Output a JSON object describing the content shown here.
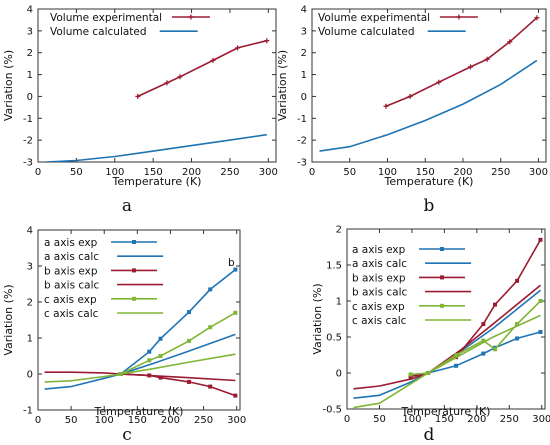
{
  "colors": {
    "exp_red": "#9b1b30",
    "calc_blue": "#1f74b4",
    "a_blue": "#1f74b4",
    "b_red": "#9b1b30",
    "c_green": "#7fb635",
    "axis": "#333333"
  },
  "chart_data": [
    {
      "panel_label": "a",
      "type": "line",
      "xlabel": "Temperature (K)",
      "ylabel": "Variation (%)",
      "xlim": [
        0,
        310
      ],
      "ylim": [
        -3,
        4
      ],
      "xticks": [
        0,
        50,
        100,
        150,
        200,
        250,
        300
      ],
      "yticks": [
        -3,
        -2,
        -1,
        0,
        1,
        2,
        3,
        4
      ],
      "legend": "top-left",
      "annotations": [],
      "series": [
        {
          "name": "Volume experimental",
          "color": "#9b1b30",
          "markers": "plus",
          "x": [
            130,
            168,
            185,
            228,
            260,
            298
          ],
          "y": [
            0.0,
            0.62,
            0.9,
            1.65,
            2.22,
            2.55
          ]
        },
        {
          "name": "Volume calculated",
          "color": "#1f74b4",
          "markers": "none",
          "x": [
            10,
            50,
            100,
            150,
            200,
            250,
            298
          ],
          "y": [
            -3.0,
            -2.93,
            -2.75,
            -2.5,
            -2.25,
            -2.0,
            -1.75
          ]
        }
      ]
    },
    {
      "panel_label": "b",
      "type": "line",
      "xlabel": "Temperature (K)",
      "ylabel": "Variation (%)",
      "xlim": [
        0,
        310
      ],
      "ylim": [
        -3,
        4
      ],
      "xticks": [
        0,
        50,
        100,
        150,
        200,
        250,
        300
      ],
      "yticks": [
        -3,
        -2,
        -1,
        0,
        1,
        2,
        3,
        4
      ],
      "legend": "top-left",
      "annotations": [],
      "series": [
        {
          "name": "Volume experimental",
          "color": "#9b1b30",
          "markers": "plus",
          "x": [
            98,
            130,
            168,
            210,
            232,
            262,
            298
          ],
          "y": [
            -0.45,
            0.0,
            0.65,
            1.35,
            1.7,
            2.5,
            3.6
          ]
        },
        {
          "name": "Volume calculated",
          "color": "#1f74b4",
          "markers": "none",
          "x": [
            10,
            50,
            100,
            150,
            200,
            250,
            298
          ],
          "y": [
            -2.5,
            -2.3,
            -1.75,
            -1.1,
            -0.35,
            0.55,
            1.65
          ]
        }
      ]
    },
    {
      "panel_label": "c",
      "type": "line",
      "xlabel": "Temperature (K)",
      "ylabel": "Variation (%)",
      "xlim": [
        0,
        305
      ],
      "ylim": [
        -1,
        4
      ],
      "xticks": [
        0,
        50,
        100,
        150,
        200,
        250,
        300
      ],
      "yticks": [
        -1,
        0,
        1,
        2,
        3,
        4
      ],
      "legend": "top-left",
      "annotations": [
        {
          "text": "b",
          "x": 292,
          "y": 3.0
        }
      ],
      "series": [
        {
          "name": "a axis exp",
          "color": "#1f74b4",
          "markers": "square",
          "x": [
            125,
            168,
            185,
            228,
            260,
            298
          ],
          "y": [
            0.0,
            0.62,
            0.98,
            1.72,
            2.35,
            2.9
          ]
        },
        {
          "name": "a axis calc",
          "color": "#1f74b4",
          "markers": "none",
          "x": [
            10,
            50,
            100,
            125,
            175,
            225,
            298
          ],
          "y": [
            -0.42,
            -0.35,
            -0.12,
            0.0,
            0.3,
            0.62,
            1.1
          ]
        },
        {
          "name": "b axis exp",
          "color": "#9b1b30",
          "markers": "square",
          "x": [
            125,
            168,
            185,
            228,
            260,
            298
          ],
          "y": [
            0.0,
            -0.04,
            -0.1,
            -0.22,
            -0.35,
            -0.6
          ]
        },
        {
          "name": "b axis calc",
          "color": "#9b1b30",
          "markers": "none",
          "x": [
            10,
            50,
            100,
            125,
            175,
            225,
            298
          ],
          "y": [
            0.05,
            0.05,
            0.03,
            0.0,
            -0.05,
            -0.1,
            -0.18
          ]
        },
        {
          "name": "c axis exp",
          "color": "#7fb635",
          "markers": "square",
          "x": [
            125,
            168,
            185,
            228,
            260,
            298
          ],
          "y": [
            0.0,
            0.38,
            0.5,
            0.92,
            1.3,
            1.7
          ]
        },
        {
          "name": "c axis calc",
          "color": "#7fb635",
          "markers": "none",
          "x": [
            10,
            50,
            100,
            125,
            175,
            225,
            298
          ],
          "y": [
            -0.22,
            -0.19,
            -0.07,
            0.0,
            0.15,
            0.32,
            0.55
          ]
        }
      ]
    },
    {
      "panel_label": "d",
      "type": "line",
      "xlabel": "Temperature (K)",
      "ylabel": "Variation (%)",
      "xlim": [
        0,
        305
      ],
      "ylim": [
        -0.5,
        2
      ],
      "xticks": [
        0,
        50,
        100,
        150,
        200,
        250,
        300
      ],
      "yticks": [
        -0.5,
        0,
        0.5,
        1,
        1.5,
        2
      ],
      "legend": "top-left",
      "annotations": [],
      "series": [
        {
          "name": "a axis exp",
          "color": "#1f74b4",
          "markers": "square",
          "x": [
            98,
            125,
            168,
            210,
            228,
            262,
            298
          ],
          "y": [
            -0.04,
            0.0,
            0.1,
            0.27,
            0.35,
            0.48,
            0.57
          ]
        },
        {
          "name": "a axis calc",
          "color": "#1f74b4",
          "markers": "none",
          "x": [
            10,
            50,
            100,
            125,
            175,
            225,
            298
          ],
          "y": [
            -0.35,
            -0.31,
            -0.12,
            0.0,
            0.3,
            0.62,
            1.15
          ]
        },
        {
          "name": "b axis exp",
          "color": "#9b1b30",
          "markers": "square",
          "x": [
            98,
            125,
            168,
            210,
            228,
            262,
            298
          ],
          "y": [
            -0.05,
            0.0,
            0.22,
            0.68,
            0.95,
            1.28,
            1.85
          ]
        },
        {
          "name": "b axis calc",
          "color": "#9b1b30",
          "markers": "none",
          "x": [
            10,
            50,
            100,
            125,
            175,
            225,
            298
          ],
          "y": [
            -0.22,
            -0.18,
            -0.08,
            0.0,
            0.32,
            0.68,
            1.22
          ]
        },
        {
          "name": "c axis exp",
          "color": "#7fb635",
          "markers": "square",
          "x": [
            98,
            125,
            168,
            210,
            228,
            262,
            298
          ],
          "y": [
            -0.02,
            0.0,
            0.25,
            0.45,
            0.33,
            0.68,
            1.0
          ]
        },
        {
          "name": "c axis calc",
          "color": "#7fb635",
          "markers": "none",
          "x": [
            10,
            50,
            100,
            125,
            175,
            225,
            298
          ],
          "y": [
            -0.48,
            -0.42,
            -0.14,
            0.0,
            0.25,
            0.5,
            0.8
          ]
        }
      ]
    }
  ]
}
